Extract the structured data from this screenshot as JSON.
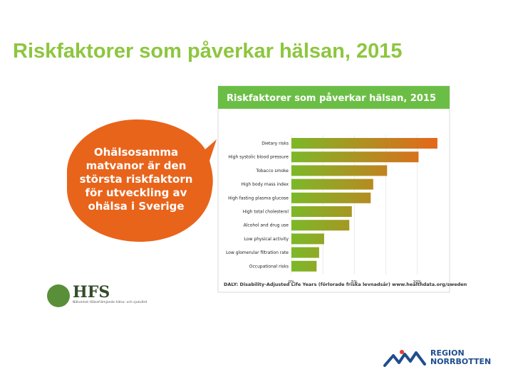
{
  "slide": {
    "title": "Riskfaktorer som påverkar hälsan, 2015"
  },
  "callout": {
    "lines": [
      "Ohälsosamma",
      "matvanor är den",
      "största riskfaktorn",
      "för utveckling av",
      "ohälsa i Sverige"
    ],
    "color": "#e8641b"
  },
  "chart_data": {
    "type": "bar",
    "orientation": "horizontal",
    "title": "Riskfaktorer som påverkar hälsan, 2015",
    "categories": [
      "Dietary risks",
      "High systolic blood pressure",
      "Tobacco smoke",
      "High body mass index",
      "High fasting plasma glucose",
      "High total cholesterol",
      "Alcohol and drug use",
      "Low physical activity",
      "Low glomerular filtration rate",
      "Occupational risks"
    ],
    "values": [
      11.6,
      10.1,
      7.6,
      6.5,
      6.3,
      4.8,
      4.6,
      2.6,
      2.2,
      2.0
    ],
    "x_ticks": [
      "0%",
      "5%",
      "10%"
    ],
    "xlim": [
      0,
      12
    ],
    "grid": true,
    "gradient": [
      "#7cb828",
      "#e8641b"
    ],
    "footnote": "DALY: Disability-Adjusted Life Years (förlorade friska levnadsår) www.healthdata.org/sweden",
    "header_color": "#6bbe45"
  },
  "logos": {
    "hfs": {
      "text": "HFS",
      "tagline": "Nätverket Hälsofrämjande hälso- och sjukvård"
    },
    "region": {
      "line1": "REGION",
      "line2": "NORRBOTTEN",
      "color": "#1f4e8c",
      "accent": "#e63c2f"
    }
  }
}
